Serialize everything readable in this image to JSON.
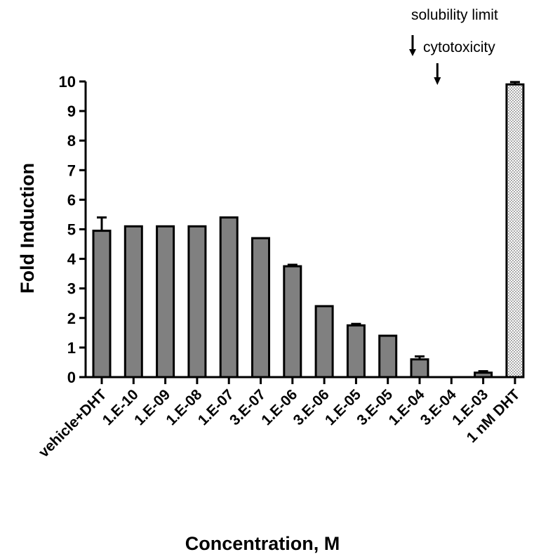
{
  "chart_data": {
    "type": "bar",
    "xlabel": "Concentration, M",
    "ylabel": "Fold Induction",
    "ylim": [
      0,
      10
    ],
    "yticks": [
      "0",
      "1",
      "2",
      "3",
      "4",
      "5",
      "6",
      "7",
      "8",
      "9",
      "10"
    ],
    "categories": [
      "vehicle+DHT",
      "1.E-10",
      "1.E-09",
      "1.E-08",
      "1.E-07",
      "3.E-07",
      "1.E-06",
      "3.E-06",
      "1.E-05",
      "3.E-05",
      "1.E-04",
      "3.E-04",
      "1.E-03",
      "1 nM DHT"
    ],
    "values": [
      4.95,
      5.1,
      5.1,
      5.1,
      5.4,
      4.7,
      3.75,
      2.4,
      1.75,
      1.4,
      0.6,
      0.0,
      0.15,
      9.9
    ],
    "errors": [
      0.45,
      0.0,
      0.0,
      0.0,
      0.0,
      0.0,
      0.05,
      0.0,
      0.05,
      0.0,
      0.1,
      0.0,
      0.05,
      0.08
    ],
    "bar_colors": [
      "#808080",
      "#808080",
      "#808080",
      "#808080",
      "#808080",
      "#808080",
      "#808080",
      "#808080",
      "#808080",
      "#808080",
      "#808080",
      "#808080",
      "#808080",
      "dotted"
    ],
    "annotations": [
      {
        "text": "solubility limit",
        "category": "1.E-04"
      },
      {
        "text": "cytotoxicity",
        "category": "3.E-04"
      }
    ],
    "grid": false
  }
}
